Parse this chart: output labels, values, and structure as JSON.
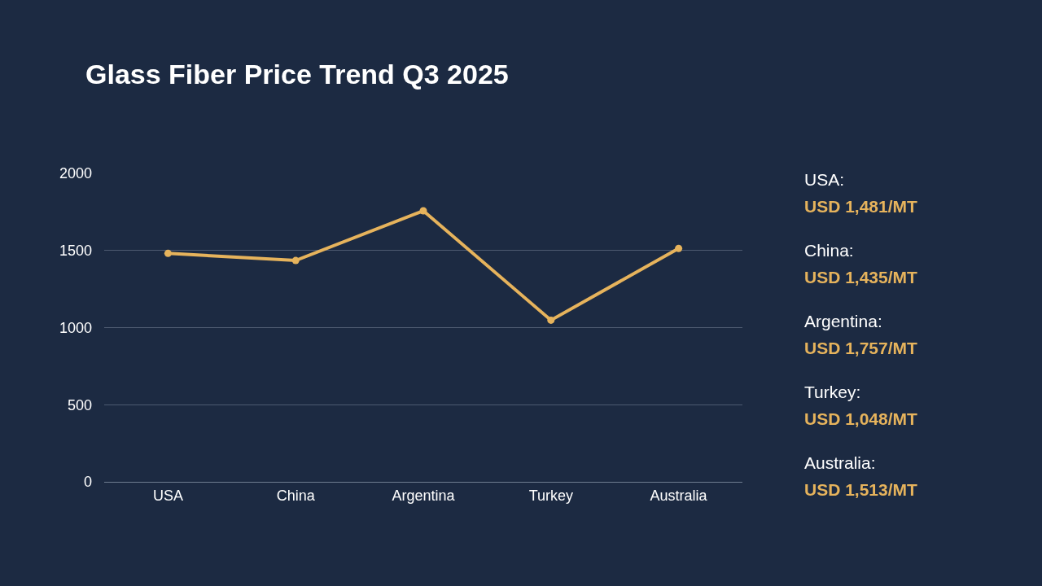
{
  "chart_data": {
    "type": "line",
    "title": "Glass Fiber Price Trend Q3 2025",
    "categories": [
      "USA",
      "China",
      "Argentina",
      "Turkey",
      "Australia"
    ],
    "series": [
      {
        "color": "#e6b35c",
        "values": [
          1481,
          1435,
          1757,
          1048,
          1513
        ]
      }
    ],
    "ylim": [
      0,
      2000
    ],
    "yticks": [
      0,
      500,
      1000,
      1500,
      2000
    ],
    "grid": "y",
    "marker": "circle",
    "line_style": "solid",
    "annotations": [
      "USA:",
      "USD 1,481/MT",
      "China:",
      "USD 1,435/MT",
      "Argentina:",
      "USD 1,757/MT",
      "Turkey:",
      "USD 1,048/MT",
      "Australia:",
      "USD 1,513/MT"
    ]
  }
}
